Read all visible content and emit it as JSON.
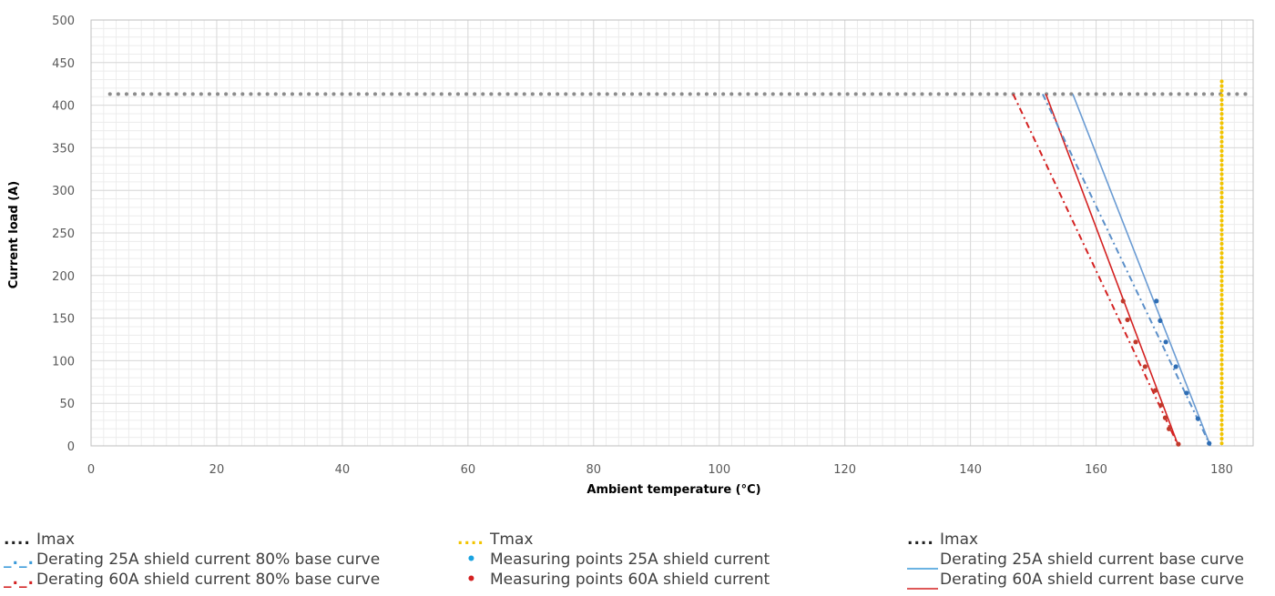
{
  "chart_data": {
    "type": "line",
    "xlabel": "Ambient temperature (°C)",
    "ylabel": "Current load  (A)",
    "xlim": [
      0,
      185
    ],
    "ylim": [
      0,
      500
    ],
    "xticks": [
      "0",
      "20",
      "40",
      "60",
      "80",
      "100",
      "120",
      "140",
      "160",
      "180"
    ],
    "yticks": [
      "0",
      "50",
      "100",
      "150",
      "200",
      "250",
      "300",
      "350",
      "400",
      "450",
      "500"
    ],
    "grid": true,
    "imax_value": 413,
    "tmax_value": 180,
    "colors": {
      "blue_line": "#5b8fc9",
      "blue_points": "#2e6db4",
      "red_line": "#d02020",
      "red_points": "#c0392b",
      "imax": "#8c8c8c",
      "tmax": "#f2c400",
      "grid": "#d9d9d9"
    },
    "series": [
      {
        "name": "Derating 25A shield current base curve",
        "style": "solid",
        "color": "#6a9bd3",
        "points": [
          [
            156.3,
            413
          ],
          [
            178.2,
            0
          ]
        ]
      },
      {
        "name": "Derating 60A shield current base curve",
        "style": "solid",
        "color": "#d42121",
        "points": [
          [
            152.0,
            413
          ],
          [
            173.1,
            0
          ]
        ]
      },
      {
        "name": "Derating 25A shield current 80% base curve",
        "style": "dashdot",
        "color": "#5b8fc9",
        "points": [
          [
            151.5,
            413
          ],
          [
            178.2,
            0
          ]
        ]
      },
      {
        "name": "Derating 60A shield current 80% base curve",
        "style": "dashdot",
        "color": "#d42121",
        "points": [
          [
            146.8,
            413
          ],
          [
            173.1,
            0
          ]
        ]
      },
      {
        "name": "Measuring points 25A shield current",
        "style": "points",
        "color": "#2e6db4",
        "points": [
          [
            169.6,
            170
          ],
          [
            170.2,
            147
          ],
          [
            171.1,
            122
          ],
          [
            172.7,
            93
          ],
          [
            174.4,
            62
          ],
          [
            176.2,
            32
          ],
          [
            178.0,
            3
          ]
        ]
      },
      {
        "name": "Measuring points 60A shield current",
        "style": "points",
        "color": "#c0392b",
        "points": [
          [
            164.3,
            170
          ],
          [
            165.0,
            148
          ],
          [
            166.3,
            122
          ],
          [
            167.8,
            93
          ],
          [
            169.4,
            65
          ],
          [
            170.4,
            48
          ],
          [
            171.0,
            33
          ],
          [
            171.6,
            20
          ],
          [
            173.1,
            2
          ]
        ]
      }
    ]
  },
  "legend": {
    "col1": [
      {
        "symbol": "....",
        "label": "Imax"
      },
      {
        "symbol": "_._.",
        "label": "Derating 25A shield current 80% base curve"
      },
      {
        "symbol": "_._.",
        "label": "Derating 60A shield current 80% base curve"
      }
    ],
    "col2": [
      {
        "symbol": "....",
        "label": "Tmax"
      },
      {
        "symbol": "•",
        "label": "Measuring points 25A shield current"
      },
      {
        "symbol": "•",
        "label": "Measuring points 60A shield current"
      }
    ],
    "col3": [
      {
        "symbol": "....",
        "label": "Imax"
      },
      {
        "label": "Derating 25A shield current base curve"
      },
      {
        "label": "Derating 60A shield current base curve"
      }
    ]
  }
}
